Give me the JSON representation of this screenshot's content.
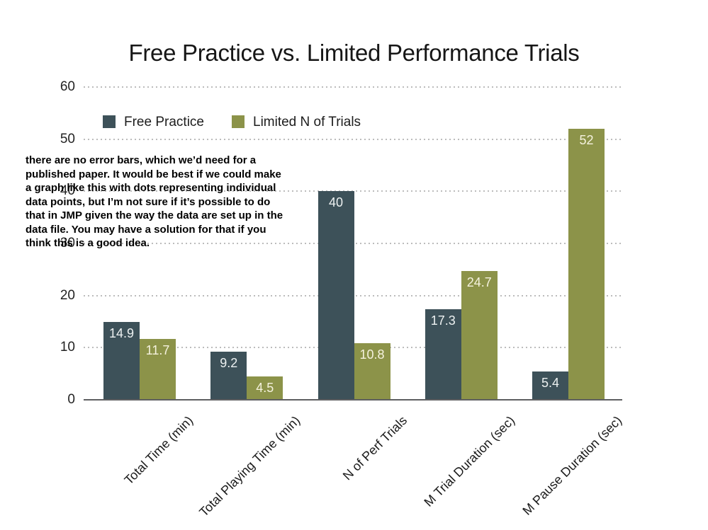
{
  "title": "Free Practice vs. Limited Performance Trials",
  "legend": {
    "items": [
      {
        "label": "Free Practice",
        "color": "#3d5159"
      },
      {
        "label": "Limited N of Trials",
        "color": "#8c9349"
      }
    ]
  },
  "annotation": {
    "lines": [
      "there are no error bars, which we’d need for a",
      "published paper. It would be best if we could make",
      "a graph like this with dots representing individual",
      "data points, but I’m not sure if it’s possible to do",
      "that in JMP given the way the data are set up in the",
      "data file. You may have a solution for that if you",
      "think this is a good idea."
    ]
  },
  "chart_data": {
    "type": "bar",
    "title": "Free Practice vs. Limited Performance Trials",
    "categories": [
      "Total Time (min)",
      "Total Playing Time (min)",
      "N of Perf Trials",
      "M Trial Duration (sec)",
      "M Pause Duration (sec)"
    ],
    "series": [
      {
        "name": "Free Practice",
        "color": "#3d5159",
        "value_label_color": "#edf1f1",
        "values": [
          14.9,
          9.2,
          40,
          17.3,
          5.4
        ]
      },
      {
        "name": "Limited N of Trials",
        "color": "#8c9349",
        "value_label_color": "#f5f2de",
        "values": [
          11.7,
          4.5,
          10.8,
          24.7,
          52
        ]
      }
    ],
    "xlabel": "",
    "ylabel": "",
    "ylim": [
      0,
      60
    ],
    "yticks": [
      0,
      10,
      20,
      30,
      40,
      50,
      60
    ],
    "grid": true,
    "grid_style": "dotted",
    "gridline_color": "#bcbcbc",
    "axis_line_color": "#5e5f61",
    "legend_position": "top-left-inside",
    "value_labels_shown": true
  }
}
